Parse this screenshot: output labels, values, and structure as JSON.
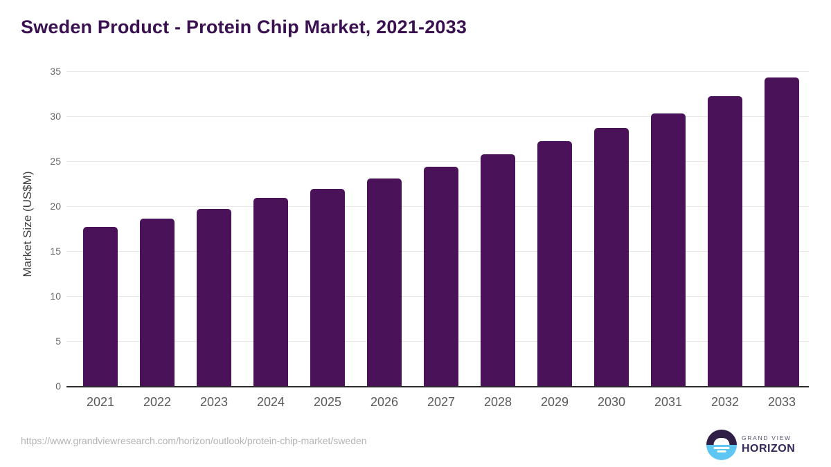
{
  "chart_data": {
    "type": "bar",
    "title": "Sweden Product - Protein Chip Market, 2021-2033",
    "xlabel": "",
    "ylabel": "Market Size (US$M)",
    "categories": [
      "2021",
      "2022",
      "2023",
      "2024",
      "2025",
      "2026",
      "2027",
      "2028",
      "2029",
      "2030",
      "2031",
      "2032",
      "2033"
    ],
    "values": [
      17.7,
      18.6,
      19.7,
      20.9,
      21.9,
      23.1,
      24.4,
      25.8,
      27.2,
      28.7,
      30.3,
      32.2,
      34.3
    ],
    "ylim": [
      0,
      35
    ],
    "y_ticks": [
      0,
      5,
      10,
      15,
      20,
      25,
      30,
      35
    ],
    "grid": true,
    "legend": "none",
    "bar_color": "#4a1259"
  },
  "footer": {
    "source_url": "https://www.grandviewresearch.com/horizon/outlook/protein-chip-market/sweden",
    "logo": {
      "line1": "GRAND VIEW",
      "line2": "HORIZON"
    }
  },
  "colors": {
    "title_text": "#3a1051",
    "bar": "#4a1259",
    "axis_line": "#2b2b2b",
    "gridline": "#e8e8e8",
    "y_tick_label": "#666666",
    "x_tick_label": "#595959",
    "url_text": "#b3b3b3",
    "logo_dark_half": "#2f1e46",
    "logo_blue_half": "#5ec6f2",
    "logo_text_top": "#55506b",
    "logo_text_bottom": "#33275b"
  }
}
